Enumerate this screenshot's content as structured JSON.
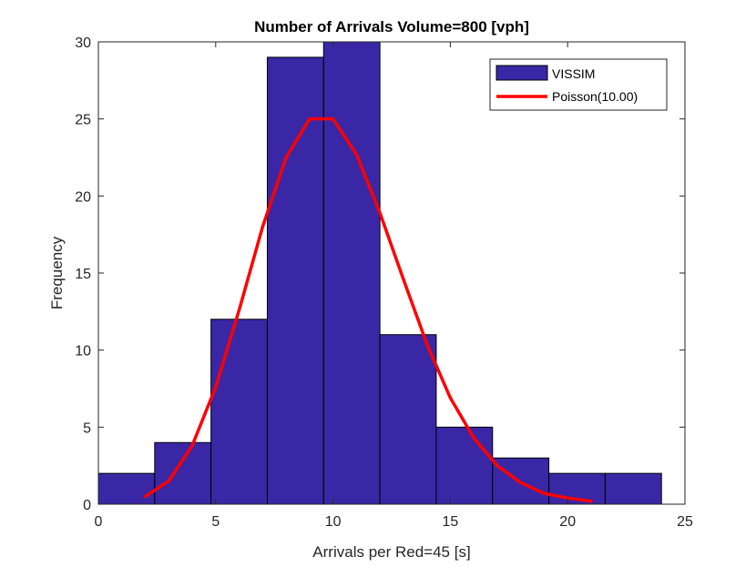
{
  "chart_data": {
    "type": "bar",
    "title": "Number of Arrivals Volume=800 [vph]",
    "xlabel": "Arrivals per Red=45 [s]",
    "ylabel": "Frequency",
    "xlim": [
      0,
      25
    ],
    "ylim": [
      0,
      30
    ],
    "xticks": [
      0,
      5,
      10,
      15,
      20,
      25
    ],
    "yticks": [
      0,
      5,
      10,
      15,
      20,
      25,
      30
    ],
    "grid": false,
    "legend_position": "top-right",
    "series": [
      {
        "name": "VISSIM",
        "type": "histogram",
        "color": "#3a27a6",
        "bin_edges": [
          0,
          2.4,
          4.8,
          7.2,
          9.6,
          12.0,
          14.4,
          16.8,
          19.2,
          21.6,
          24.0
        ],
        "values": [
          2,
          4,
          12,
          29,
          30,
          11,
          5,
          3,
          2,
          2
        ]
      },
      {
        "name": "Poisson(10.00)",
        "type": "line",
        "color": "#ff0000",
        "x": [
          2,
          3,
          4,
          5,
          6,
          7,
          8,
          9,
          10,
          11,
          12,
          13,
          14,
          15,
          16,
          17,
          18,
          19,
          20,
          21
        ],
        "y": [
          0.5,
          1.5,
          3.8,
          7.6,
          12.6,
          18.0,
          22.5,
          25.0,
          25.0,
          22.7,
          18.9,
          14.6,
          10.4,
          6.9,
          4.3,
          2.5,
          1.4,
          0.7,
          0.4,
          0.2
        ]
      }
    ]
  }
}
